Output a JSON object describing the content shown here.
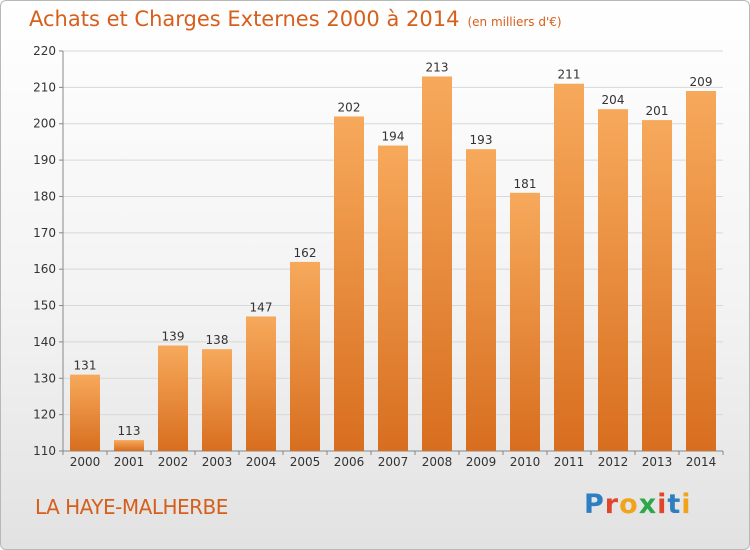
{
  "header": {
    "title": "Achats et Charges Externes 2000 à 2014",
    "subtitle": "(en milliers d'€)"
  },
  "footer": {
    "commune": "LA HAYE-MALHERBE",
    "brand": "Proxiti"
  },
  "colors": {
    "accent": "#d65f1c",
    "bar_top": "#f7a95b",
    "bar_bottom": "#d86e1f"
  },
  "chart_data": {
    "type": "bar",
    "title": "Achats et Charges Externes 2000 à 2014",
    "subtitle": "(en milliers d'€)",
    "xlabel": "",
    "ylabel": "",
    "categories": [
      "2000",
      "2001",
      "2002",
      "2003",
      "2004",
      "2005",
      "2006",
      "2007",
      "2008",
      "2009",
      "2010",
      "2011",
      "2012",
      "2013",
      "2014"
    ],
    "values": [
      131,
      113,
      139,
      138,
      147,
      162,
      202,
      194,
      213,
      193,
      181,
      211,
      204,
      201,
      209
    ],
    "ylim": [
      110,
      220
    ],
    "yticks": [
      110,
      120,
      130,
      140,
      150,
      160,
      170,
      180,
      190,
      200,
      210,
      220
    ],
    "grid": true,
    "data_labels": true
  }
}
